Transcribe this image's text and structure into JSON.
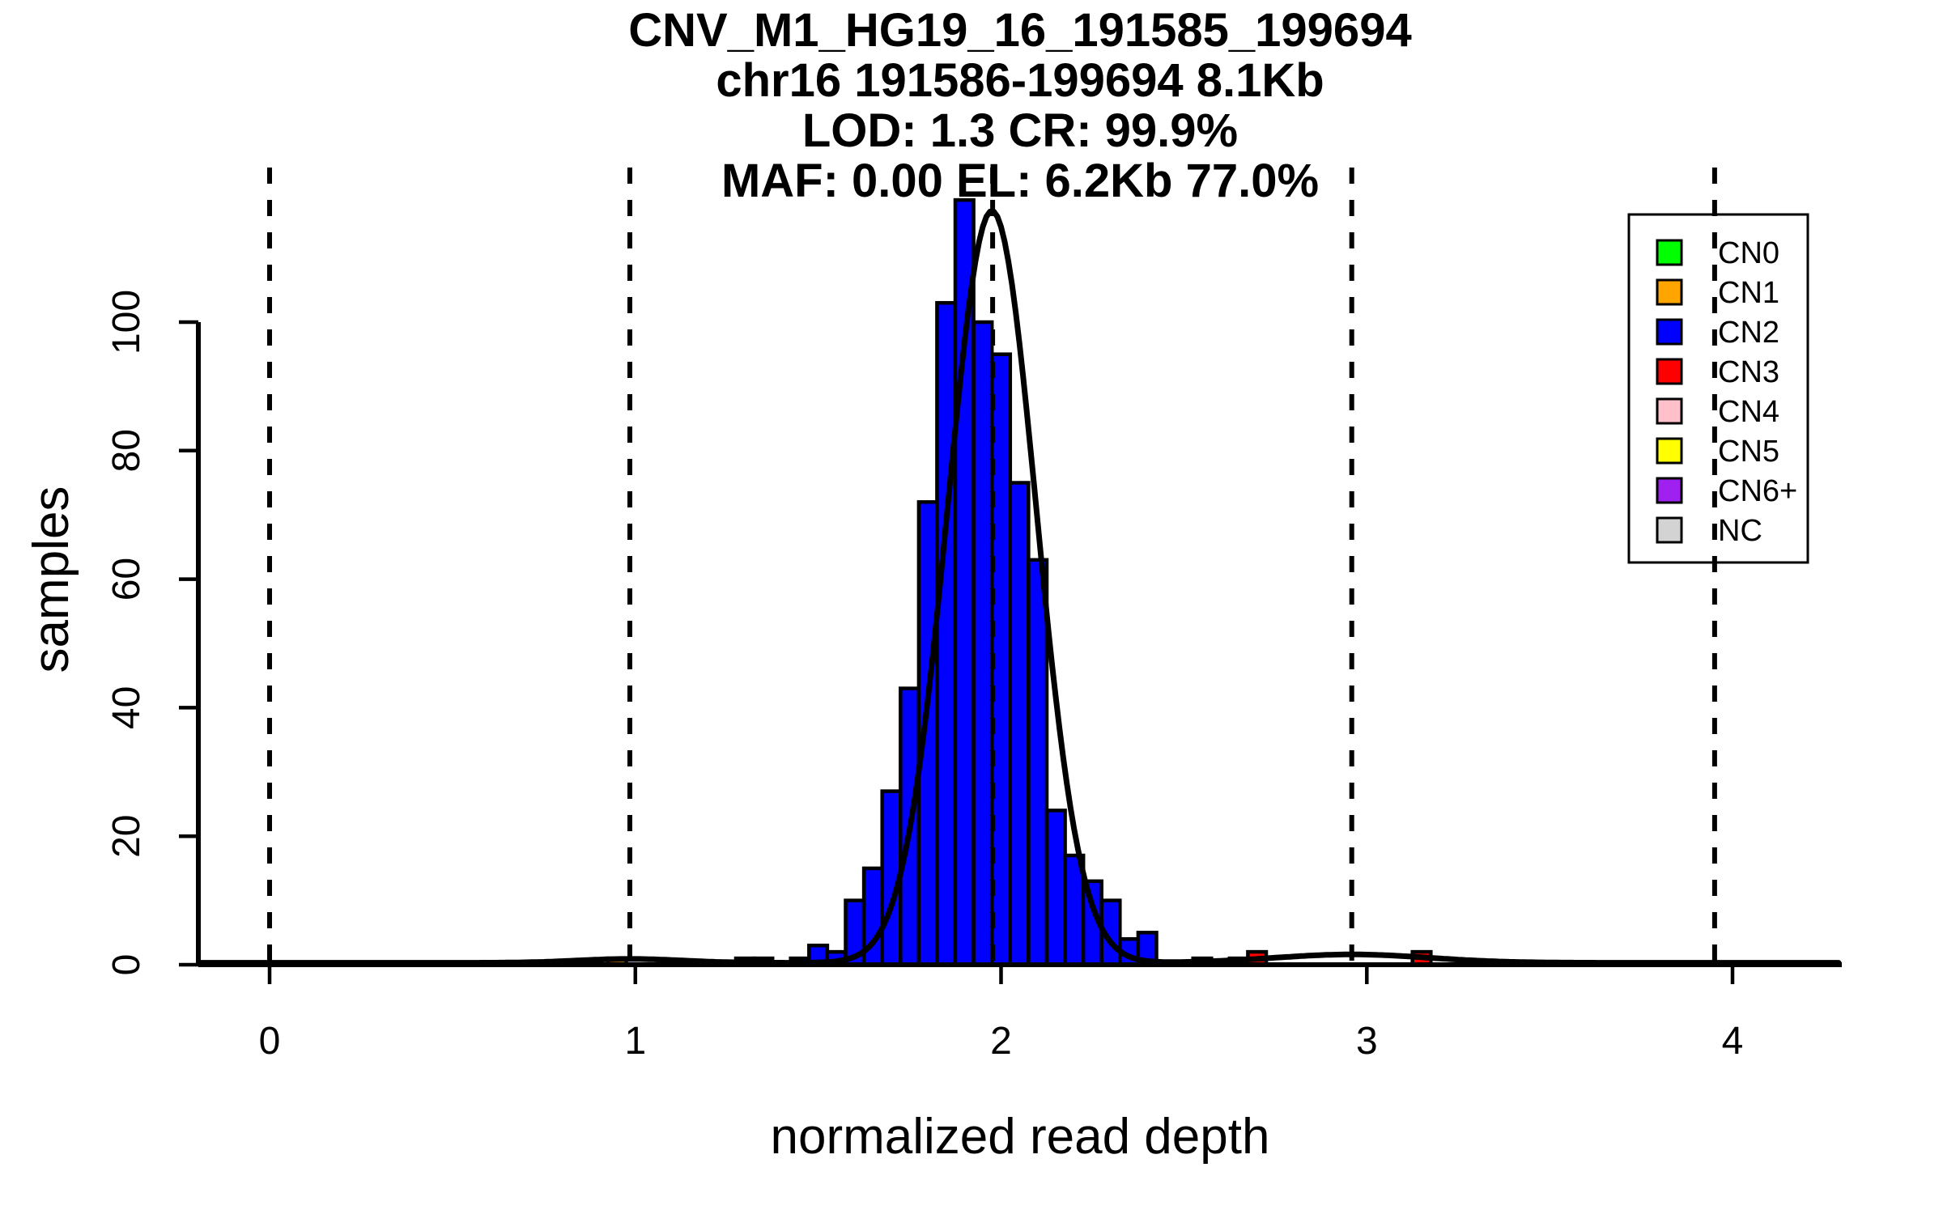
{
  "title": {
    "line1": "CNV_M1_HG19_16_191585_199694",
    "line2": "chr16 191586-199694 8.1Kb",
    "line3": "LOD: 1.3 CR: 99.9%",
    "line4": "MAF: 0.00 EL: 6.2Kb 77.0%"
  },
  "axes": {
    "xlabel": "normalized read depth",
    "ylabel": "samples",
    "x_ticks": [
      "0",
      "1",
      "2",
      "3",
      "4"
    ],
    "x_tick_values": [
      0,
      1,
      2,
      3,
      4
    ],
    "y_ticks": [
      "0",
      "20",
      "40",
      "60",
      "80",
      "100"
    ],
    "y_tick_values": [
      0,
      20,
      40,
      60,
      80,
      100
    ]
  },
  "legend": {
    "items": [
      {
        "label": "CN0",
        "color": "#00FF00"
      },
      {
        "label": "CN1",
        "color": "#FFA500"
      },
      {
        "label": "CN2",
        "color": "#0000FF"
      },
      {
        "label": "CN3",
        "color": "#FF0000"
      },
      {
        "label": "CN4",
        "color": "#FFC0CB"
      },
      {
        "label": "CN5",
        "color": "#FFFF00"
      },
      {
        "label": "CN6+",
        "color": "#A020F0"
      },
      {
        "label": "NC",
        "color": "#D3D3D3"
      }
    ]
  },
  "chart_data": {
    "type": "bar",
    "subtype": "histogram-with-density-curve",
    "title": "CNV_M1_HG19_16_191585_199694 / chr16 191586-199694 8.1Kb / LOD: 1.3 CR: 99.9% / MAF: 0.00 EL: 6.2Kb 77.0%",
    "xlabel": "normalized read depth",
    "ylabel": "samples",
    "xlim": [
      -0.2,
      4.3
    ],
    "ylim": [
      0,
      124
    ],
    "grid": false,
    "legend_position": "top-right",
    "bin_width": 0.05,
    "bars": [
      {
        "x": 0.925,
        "count": 1,
        "cn": "CN1"
      },
      {
        "x": 1.275,
        "count": 1,
        "cn": "CN2"
      },
      {
        "x": 1.325,
        "count": 1,
        "cn": "CN2"
      },
      {
        "x": 1.425,
        "count": 1,
        "cn": "CN2"
      },
      {
        "x": 1.475,
        "count": 3,
        "cn": "CN2"
      },
      {
        "x": 1.525,
        "count": 2,
        "cn": "CN2"
      },
      {
        "x": 1.575,
        "count": 10,
        "cn": "CN2"
      },
      {
        "x": 1.625,
        "count": 15,
        "cn": "CN2"
      },
      {
        "x": 1.675,
        "count": 27,
        "cn": "CN2"
      },
      {
        "x": 1.725,
        "count": 43,
        "cn": "CN2"
      },
      {
        "x": 1.775,
        "count": 72,
        "cn": "CN2"
      },
      {
        "x": 1.825,
        "count": 103,
        "cn": "CN2"
      },
      {
        "x": 1.875,
        "count": 119,
        "cn": "CN2"
      },
      {
        "x": 1.925,
        "count": 100,
        "cn": "CN2"
      },
      {
        "x": 1.975,
        "count": 95,
        "cn": "CN2"
      },
      {
        "x": 2.025,
        "count": 75,
        "cn": "CN2"
      },
      {
        "x": 2.075,
        "count": 63,
        "cn": "CN2"
      },
      {
        "x": 2.125,
        "count": 24,
        "cn": "CN2"
      },
      {
        "x": 2.175,
        "count": 17,
        "cn": "CN2"
      },
      {
        "x": 2.225,
        "count": 13,
        "cn": "CN2"
      },
      {
        "x": 2.275,
        "count": 10,
        "cn": "CN2"
      },
      {
        "x": 2.325,
        "count": 4,
        "cn": "CN2"
      },
      {
        "x": 2.375,
        "count": 5,
        "cn": "CN2"
      },
      {
        "x": 2.525,
        "count": 1,
        "cn": "NC"
      },
      {
        "x": 2.625,
        "count": 1,
        "cn": "CN3"
      },
      {
        "x": 2.675,
        "count": 2,
        "cn": "CN3"
      },
      {
        "x": 3.125,
        "count": 2,
        "cn": "CN3"
      }
    ],
    "dashed_lines_x": [
      0.0,
      0.985,
      1.977,
      2.959,
      3.951
    ],
    "curve_components": [
      {
        "mu": 1.975,
        "sigma": 0.121,
        "amp": 117
      },
      {
        "mu": 0.985,
        "sigma": 0.14,
        "amp": 0.6
      },
      {
        "mu": 2.959,
        "sigma": 0.21,
        "amp": 1.3
      }
    ],
    "curve_floor": 0.3
  }
}
